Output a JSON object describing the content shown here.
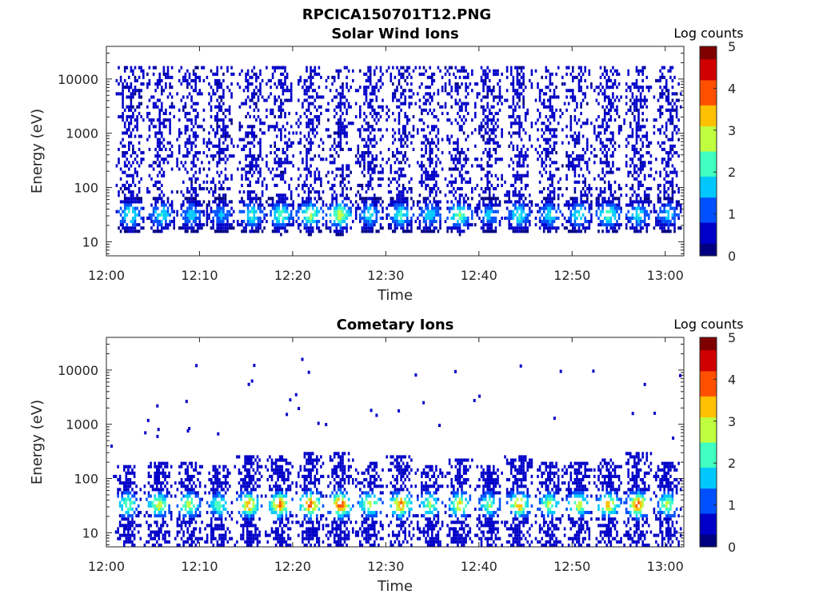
{
  "figure": {
    "title": "RPCICA150701T12.PNG"
  },
  "colorscale": [
    "#000080",
    "#0000c8",
    "#0050ff",
    "#00c8ff",
    "#40ffc0",
    "#c0ff40",
    "#ffc000",
    "#ff5000",
    "#d00000",
    "#800000"
  ],
  "chart_data": [
    {
      "type": "heatmap",
      "title": "Solar Wind Ions",
      "xlabel": "Time",
      "ylabel": "Energy (eV)",
      "xlim": [
        "12:00",
        "13:02"
      ],
      "ylim": [
        5.5,
        40000
      ],
      "yscale": "log",
      "xticks": [
        "12:00",
        "12:10",
        "12:20",
        "12:30",
        "12:40",
        "12:50",
        "13:00"
      ],
      "yticks": [
        10,
        100,
        1000,
        10000
      ],
      "ytick_labels": [
        "10",
        "100",
        "1000",
        "10000"
      ],
      "colorbar": {
        "label": "Log counts",
        "range": [
          0,
          5
        ],
        "ticks": [
          "0",
          "1",
          "2",
          "3",
          "4",
          "5"
        ]
      },
      "sweep_centers": [
        "12:02.5",
        "12:05.8",
        "12:09.0",
        "12:12.2",
        "12:15.5",
        "12:18.6",
        "12:21.8",
        "12:25.0",
        "12:28.2",
        "12:31.5",
        "12:34.6",
        "12:37.8",
        "12:41.0",
        "12:44.2",
        "12:47.5",
        "12:50.6",
        "12:53.8",
        "12:57.0",
        "13:00.2"
      ],
      "core_energy_eV": [
        20,
        60
      ],
      "peak_log_counts": [
        2.3,
        2.1,
        1.8,
        1.6,
        2.2,
        2.5,
        2.8,
        3.0,
        2.0,
        2.2,
        1.9,
        2.6,
        1.7,
        2.2,
        2.0,
        2.1,
        2.4,
        2.0,
        1.8
      ],
      "upper_tail_max_eV": 15000
    },
    {
      "type": "heatmap",
      "title": "Cometary Ions",
      "xlabel": "Time",
      "ylabel": "Energy (eV)",
      "xlim": [
        "12:00",
        "13:02"
      ],
      "ylim": [
        5.5,
        40000
      ],
      "yscale": "log",
      "xticks": [
        "12:00",
        "12:10",
        "12:20",
        "12:30",
        "12:40",
        "12:50",
        "13:00"
      ],
      "yticks": [
        10,
        100,
        1000,
        10000
      ],
      "ytick_labels": [
        "10",
        "100",
        "1000",
        "10000"
      ],
      "colorbar": {
        "label": "Log counts",
        "range": [
          0,
          5
        ],
        "ticks": [
          "0",
          "1",
          "2",
          "3",
          "4",
          "5"
        ]
      },
      "sweep_centers": [
        "12:02.2",
        "12:05.5",
        "12:08.8",
        "12:12.0",
        "12:15.2",
        "12:18.5",
        "12:21.8",
        "12:25.0",
        "12:28.2",
        "12:31.5",
        "12:34.6",
        "12:37.8",
        "12:41.0",
        "12:44.2",
        "12:47.5",
        "12:50.6",
        "12:53.8",
        "12:57.0",
        "13:00.2"
      ],
      "core_energy_eV": [
        20,
        60
      ],
      "peak_log_counts": [
        2.4,
        2.8,
        2.6,
        2.2,
        3.4,
        3.6,
        3.8,
        4.0,
        2.8,
        3.6,
        2.4,
        3.0,
        2.3,
        3.4,
        2.6,
        2.8,
        3.2,
        3.8,
        2.6
      ],
      "scattered_high_energy_max_eV": 20000
    }
  ]
}
